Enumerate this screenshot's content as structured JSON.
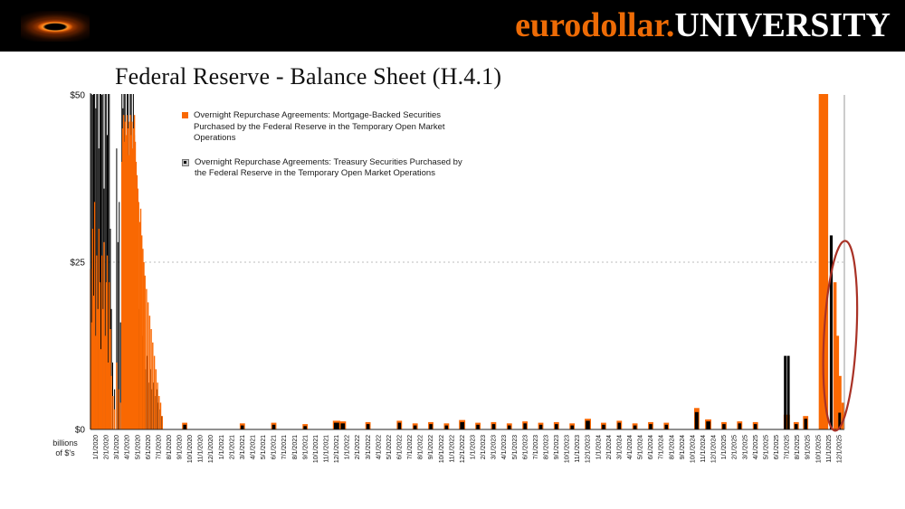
{
  "header": {
    "brand_orange": "eurodollar.",
    "brand_white": "UNIVERSITY"
  },
  "title": "Federal Reserve - Balance Sheet (H.4.1)",
  "chart_data": {
    "type": "bar",
    "title": "Federal Reserve - Balance Sheet (H.4.1)",
    "ylabel": "billions of $'s",
    "ylabel_lines": [
      "billions",
      "of $'s"
    ],
    "ylim": [
      0,
      50
    ],
    "clip_at_ylim": true,
    "grid": "dotted line at $25",
    "yticks": [
      {
        "v": 0,
        "label": "$0"
      },
      {
        "v": 25,
        "label": "$25"
      },
      {
        "v": 50,
        "label": "$50"
      }
    ],
    "x_labels": [
      "1/1/2020",
      "2/1/2020",
      "3/1/2020",
      "4/1/2020",
      "5/1/2020",
      "6/1/2020",
      "7/1/2020",
      "8/1/2020",
      "9/1/2020",
      "10/1/2020",
      "11/1/2020",
      "12/1/2020",
      "1/1/2021",
      "2/1/2021",
      "3/1/2021",
      "4/1/2021",
      "5/1/2021",
      "6/1/2021",
      "7/1/2021",
      "8/1/2021",
      "9/1/2021",
      "10/1/2021",
      "11/1/2021",
      "12/1/2021",
      "1/1/2022",
      "2/1/2022",
      "3/1/2022",
      "4/1/2022",
      "5/1/2022",
      "6/1/2022",
      "7/1/2022",
      "8/1/2022",
      "9/1/2022",
      "10/1/2022",
      "11/1/2022",
      "12/1/2022",
      "1/1/2023",
      "2/1/2023",
      "3/1/2023",
      "4/1/2023",
      "5/1/2023",
      "6/1/2023",
      "7/1/2023",
      "8/1/2023",
      "9/1/2023",
      "10/1/2023",
      "11/1/2023",
      "12/1/2023",
      "1/1/2024",
      "2/1/2024",
      "3/1/2024",
      "4/1/2024",
      "5/1/2024",
      "6/1/2024",
      "7/1/2024",
      "8/1/2024",
      "9/1/2024",
      "10/1/2024",
      "11/1/2024",
      "12/1/2024",
      "1/1/2025",
      "2/1/2025",
      "3/1/2025",
      "4/1/2025",
      "5/1/2025",
      "6/1/2025",
      "7/1/2025",
      "8/1/2025",
      "9/1/2025",
      "10/1/2025",
      "11/1/2025",
      "12/1/2025"
    ],
    "legend": [
      {
        "label": "Overnight Repurchase Agreements: Mortgage-Backed Securities Purchased by the Federal Reserve in the Temporary Open Market Operations",
        "color": "#F96802"
      },
      {
        "label": "Overnight Repurchase Agreements: Treasury Securities Purchased by the Federal Reserve in the Temporary Open Market Operations",
        "color": "#000000"
      }
    ],
    "series": [
      {
        "name": "Overnight Repo: Treasury Securities",
        "color": "#000000",
        "z": 0,
        "bar_w": 0.09,
        "bars": [
          [
            0.0,
            52
          ],
          [
            0.1,
            56
          ],
          [
            0.2,
            50
          ],
          [
            0.3,
            56
          ],
          [
            0.4,
            56
          ],
          [
            0.5,
            48
          ],
          [
            0.6,
            56
          ],
          [
            0.7,
            56
          ],
          [
            0.8,
            42
          ],
          [
            0.9,
            56
          ],
          [
            1.0,
            56
          ],
          [
            1.1,
            50
          ],
          [
            1.2,
            56
          ],
          [
            1.3,
            36
          ],
          [
            1.4,
            56
          ],
          [
            1.5,
            56
          ],
          [
            1.6,
            44
          ],
          [
            1.7,
            56
          ],
          [
            1.8,
            56
          ],
          [
            1.9,
            30
          ],
          [
            2.0,
            18
          ],
          [
            2.12,
            10
          ],
          [
            2.3,
            6
          ],
          [
            2.5,
            42
          ],
          [
            2.62,
            28
          ],
          [
            2.75,
            34
          ],
          [
            2.87,
            16
          ],
          [
            3.0,
            56
          ],
          [
            3.1,
            48
          ],
          [
            3.2,
            56
          ],
          [
            3.3,
            56
          ],
          [
            3.4,
            40
          ],
          [
            3.5,
            56
          ],
          [
            3.6,
            56
          ],
          [
            3.7,
            34
          ],
          [
            3.8,
            56
          ],
          [
            3.9,
            56
          ],
          [
            4.0,
            28
          ],
          [
            4.1,
            56
          ],
          [
            4.2,
            44
          ],
          [
            4.35,
            24
          ],
          [
            4.5,
            30
          ],
          [
            4.65,
            18
          ],
          [
            4.8,
            24
          ],
          [
            4.95,
            14
          ],
          [
            5.1,
            12
          ],
          [
            5.25,
            9
          ],
          [
            5.4,
            11
          ],
          [
            5.55,
            7
          ],
          [
            5.7,
            9
          ],
          [
            5.85,
            6
          ],
          [
            6.0,
            7
          ],
          [
            6.15,
            5
          ],
          [
            6.3,
            6
          ],
          [
            6.45,
            4
          ],
          [
            6.6,
            3
          ],
          [
            6.75,
            2
          ],
          [
            9.0,
            0.7,
            0.3,
            2
          ],
          [
            14.5,
            0.6,
            0.3,
            2
          ],
          [
            17.5,
            0.7,
            0.3,
            2
          ],
          [
            20.5,
            0.5,
            0.3,
            2
          ],
          [
            23.5,
            1.0,
            0.5,
            2
          ],
          [
            24.1,
            0.9,
            0.4,
            2
          ],
          [
            26.5,
            0.8,
            0.3,
            2
          ],
          [
            29.5,
            1.0,
            0.3,
            2
          ],
          [
            31.0,
            0.6,
            0.3,
            2
          ],
          [
            32.5,
            0.8,
            0.3,
            2
          ],
          [
            34.0,
            0.6,
            0.3,
            2
          ],
          [
            35.5,
            1.1,
            0.4,
            2
          ],
          [
            37.0,
            0.7,
            0.3,
            2
          ],
          [
            38.5,
            0.8,
            0.3,
            2
          ],
          [
            40.0,
            0.6,
            0.3,
            2
          ],
          [
            41.5,
            0.9,
            0.3,
            2
          ],
          [
            43.0,
            0.7,
            0.3,
            2
          ],
          [
            44.5,
            0.8,
            0.3,
            2
          ],
          [
            46.0,
            0.6,
            0.3,
            2
          ],
          [
            47.5,
            1.3,
            0.4,
            2
          ],
          [
            49.0,
            0.7,
            0.3,
            2
          ],
          [
            50.5,
            1.0,
            0.3,
            2
          ],
          [
            52.0,
            0.6,
            0.3,
            2
          ],
          [
            53.5,
            0.8,
            0.3,
            2
          ],
          [
            55.0,
            0.7,
            0.3,
            2
          ],
          [
            57.9,
            2.6,
            0.35,
            2
          ],
          [
            59.0,
            1.2,
            0.4,
            2
          ],
          [
            60.5,
            0.8,
            0.3,
            2
          ],
          [
            62.0,
            0.9,
            0.3,
            2
          ],
          [
            63.5,
            0.8,
            0.3,
            2
          ],
          [
            66.35,
            11,
            0.25,
            2
          ],
          [
            66.65,
            11,
            0.25,
            2
          ],
          [
            67.4,
            0.8,
            0.3,
            2
          ],
          [
            68.3,
            1.6,
            0.3,
            2
          ],
          [
            70.75,
            29,
            0.28,
            2
          ],
          [
            71.55,
            2.5,
            0.25,
            2
          ]
        ]
      },
      {
        "name": "Overnight Repo: Mortgage-Backed Securities",
        "color": "#F96802",
        "z": 1,
        "bar_w": 0.12,
        "bars": [
          [
            0.0,
            24
          ],
          [
            0.1,
            16
          ],
          [
            0.2,
            30
          ],
          [
            0.3,
            20
          ],
          [
            0.4,
            34
          ],
          [
            0.5,
            14
          ],
          [
            0.6,
            26
          ],
          [
            0.7,
            18
          ],
          [
            0.8,
            30
          ],
          [
            0.9,
            22
          ],
          [
            1.0,
            12
          ],
          [
            1.1,
            26
          ],
          [
            1.2,
            18
          ],
          [
            1.3,
            28
          ],
          [
            1.4,
            14
          ],
          [
            1.5,
            22
          ],
          [
            1.6,
            26
          ],
          [
            1.7,
            10
          ],
          [
            1.8,
            22
          ],
          [
            1.9,
            15
          ],
          [
            2.0,
            8
          ],
          [
            2.15,
            5
          ],
          [
            2.3,
            3
          ],
          [
            2.5,
            10
          ],
          [
            2.7,
            6
          ],
          [
            2.85,
            4
          ],
          [
            3.0,
            40
          ],
          [
            3.08,
            45
          ],
          [
            3.16,
            47
          ],
          [
            3.24,
            43
          ],
          [
            3.32,
            46
          ],
          [
            3.4,
            44
          ],
          [
            3.48,
            47
          ],
          [
            3.56,
            45
          ],
          [
            3.64,
            41
          ],
          [
            3.72,
            46
          ],
          [
            3.8,
            47
          ],
          [
            3.88,
            44
          ],
          [
            3.96,
            46
          ],
          [
            4.04,
            42
          ],
          [
            4.12,
            45
          ],
          [
            4.2,
            47
          ],
          [
            4.28,
            43
          ],
          [
            4.36,
            40
          ],
          [
            4.44,
            38
          ],
          [
            4.52,
            36
          ],
          [
            4.6,
            34
          ],
          [
            4.7,
            31
          ],
          [
            4.8,
            33
          ],
          [
            4.9,
            29
          ],
          [
            5.0,
            27
          ],
          [
            5.1,
            25
          ],
          [
            5.2,
            23
          ],
          [
            5.35,
            21
          ],
          [
            5.5,
            19
          ],
          [
            5.65,
            17
          ],
          [
            5.8,
            15
          ],
          [
            5.95,
            13
          ],
          [
            6.1,
            11
          ],
          [
            6.25,
            9
          ],
          [
            6.4,
            7
          ],
          [
            6.55,
            5
          ],
          [
            6.7,
            4
          ],
          [
            6.85,
            2
          ],
          [
            9.0,
            1.0,
            0.5
          ],
          [
            14.5,
            0.9,
            0.5
          ],
          [
            17.5,
            1.0,
            0.5
          ],
          [
            20.5,
            0.8,
            0.5
          ],
          [
            23.5,
            1.3,
            0.7
          ],
          [
            24.1,
            1.2,
            0.6
          ],
          [
            26.5,
            1.1,
            0.5
          ],
          [
            29.5,
            1.3,
            0.5
          ],
          [
            31.0,
            0.9,
            0.5
          ],
          [
            32.5,
            1.1,
            0.5
          ],
          [
            34.0,
            0.9,
            0.5
          ],
          [
            35.5,
            1.4,
            0.6
          ],
          [
            37.0,
            1.0,
            0.5
          ],
          [
            38.5,
            1.1,
            0.5
          ],
          [
            40.0,
            0.9,
            0.5
          ],
          [
            41.5,
            1.2,
            0.5
          ],
          [
            43.0,
            1.0,
            0.5
          ],
          [
            44.5,
            1.1,
            0.5
          ],
          [
            46.0,
            0.9,
            0.5
          ],
          [
            47.5,
            1.6,
            0.6
          ],
          [
            49.0,
            1.0,
            0.5
          ],
          [
            50.5,
            1.3,
            0.5
          ],
          [
            52.0,
            0.9,
            0.5
          ],
          [
            53.5,
            1.1,
            0.5
          ],
          [
            55.0,
            1.0,
            0.5
          ],
          [
            57.9,
            3.2,
            0.5
          ],
          [
            59.0,
            1.5,
            0.6
          ],
          [
            60.5,
            1.1,
            0.5
          ],
          [
            62.0,
            1.2,
            0.5
          ],
          [
            63.5,
            1.1,
            0.5
          ],
          [
            66.5,
            2.2,
            0.6
          ],
          [
            67.4,
            1.1,
            0.5
          ],
          [
            68.3,
            2.0,
            0.5
          ],
          [
            70.0,
            56,
            0.9
          ],
          [
            71.1,
            22,
            0.3
          ],
          [
            71.35,
            14,
            0.28
          ],
          [
            71.6,
            8,
            0.25
          ],
          [
            71.85,
            4,
            0.25
          ]
        ]
      }
    ],
    "annotation": {
      "shape": "ellipse",
      "x": 71.6,
      "y": 14,
      "rx": 1.55,
      "ry": 14.2,
      "rotate": 3,
      "color": "#A93226",
      "meaning": "circle around the late-2025 repo spike"
    }
  }
}
